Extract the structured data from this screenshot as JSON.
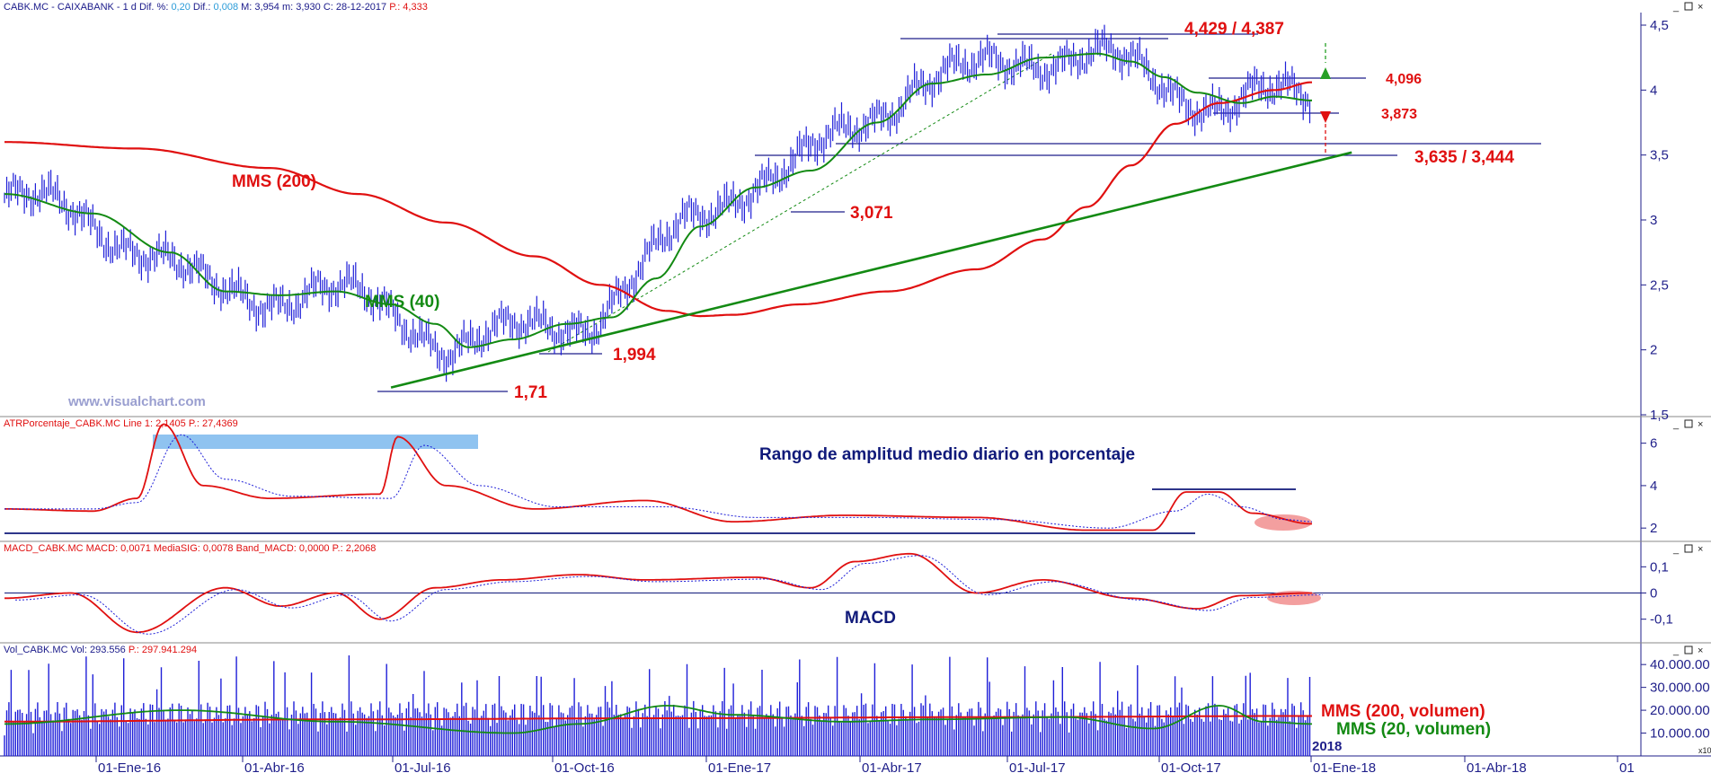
{
  "panels": {
    "price": {
      "header": [
        {
          "t": "CABK.MC - CAIXABANK - 1 d  Dif. %: ",
          "c": "#1a1a8a"
        },
        {
          "t": "0,20",
          "c": "#2a9bd8"
        },
        {
          "t": "  Dif.: ",
          "c": "#1a1a8a"
        },
        {
          "t": "0,008",
          "c": "#2a9bd8"
        },
        {
          "t": "  M: 3,954  m: 3,930  C: 28-12-2017  ",
          "c": "#1a1a8a"
        },
        {
          "t": "P.: 4,333",
          "c": "#e01010"
        }
      ],
      "yticks": [
        "4,5",
        "4",
        "3,5",
        "3",
        "2,5",
        "2",
        "1,5"
      ]
    },
    "atr": {
      "header": [
        {
          "t": "ATRPorcentaje_CABK.MC  Line 1: 2,1405  ",
          "c": "#e01010"
        },
        {
          "t": "P.: 27,4369",
          "c": "#e01010"
        }
      ],
      "yticks": [
        "6",
        "4",
        "2"
      ],
      "note": "Rango de amplitud medio diario en porcentaje"
    },
    "macd": {
      "header": [
        {
          "t": "MACD_CABK.MC  MACD: 0,0071  MediaSIG: 0,0078  Band_MACD: 0,0000  ",
          "c": "#e01010"
        },
        {
          "t": "P.: 2,2068",
          "c": "#e01010"
        }
      ],
      "yticks": [
        "0,1",
        "0",
        "-0,1"
      ],
      "note": "MACD"
    },
    "vol": {
      "header": [
        {
          "t": "Vol_CABK.MC  Vol: 293.556  ",
          "c": "#1a1a8a"
        },
        {
          "t": "P.: 297.941.294",
          "c": "#e01010"
        }
      ],
      "yticks": [
        "40.000.00",
        "30.000.00",
        "20.000.00",
        "10.000.00"
      ],
      "scale_label": "x10"
    }
  },
  "xticks": [
    "01-Ene-16",
    "01-Abr-16",
    "01-Jul-16",
    "01-Oct-16",
    "01-Ene-17",
    "01-Abr-17",
    "01-Jul-17",
    "01-Oct-17",
    "01-Ene-18",
    "01-Abr-18",
    "01"
  ],
  "year_label": "2018",
  "watermark": "www.visualchart.com",
  "annotations": {
    "mms200": "MMS (200)",
    "mms40": "MMS (40)",
    "high": "4,429 / 4,387",
    "res": "4,096",
    "sup": "3,873",
    "sup2": "3,635 / 3,444",
    "lvl3071": "3,071",
    "lvl1994": "1,994",
    "lvl171": "1,71",
    "vol200": "MMS (200, volumen)",
    "vol20": "MMS (20, volumen)"
  },
  "colors": {
    "price_bars": "#1f1fd8",
    "mms200": "#e01010",
    "mms40": "#138a13",
    "trend": "#138a13",
    "level_lines": "#1f1f8a",
    "atr_line": "#e01010",
    "atr_signal": "#1f1fd8",
    "highlight": "#8fc3f0",
    "ellipse": "#ef7f7f",
    "volume": "#1f1fd8"
  },
  "chart_data": [
    {
      "type": "line",
      "panel": "price",
      "ylim": [
        1.5,
        4.5
      ],
      "series": [
        {
          "name": "MMS (200)",
          "values": [
            [
              0,
              3.6
            ],
            [
              60,
              3.55
            ],
            [
              120,
              3.4
            ],
            [
              160,
              3.2
            ],
            [
              200,
              2.98
            ],
            [
              240,
              2.72
            ],
            [
              270,
              2.5
            ],
            [
              300,
              2.3
            ],
            [
              315,
              2.26
            ],
            [
              330,
              2.27
            ],
            [
              360,
              2.35
            ],
            [
              400,
              2.45
            ],
            [
              440,
              2.62
            ],
            [
              470,
              2.85
            ],
            [
              490,
              3.1
            ],
            [
              510,
              3.42
            ],
            [
              530,
              3.74
            ],
            [
              550,
              3.9
            ],
            [
              575,
              4.0
            ],
            [
              592,
              4.06
            ]
          ]
        },
        {
          "name": "MMS (40)",
          "values": [
            [
              0,
              3.2
            ],
            [
              40,
              3.05
            ],
            [
              75,
              2.75
            ],
            [
              100,
              2.45
            ],
            [
              125,
              2.42
            ],
            [
              150,
              2.45
            ],
            [
              175,
              2.35
            ],
            [
              195,
              2.2
            ],
            [
              210,
              2.02
            ],
            [
              230,
              2.08
            ],
            [
              255,
              2.2
            ],
            [
              275,
              2.25
            ],
            [
              295,
              2.55
            ],
            [
              315,
              2.95
            ],
            [
              340,
              3.25
            ],
            [
              365,
              3.38
            ],
            [
              395,
              3.75
            ],
            [
              420,
              4.05
            ],
            [
              445,
              4.12
            ],
            [
              470,
              4.25
            ],
            [
              495,
              4.28
            ],
            [
              510,
              4.22
            ],
            [
              525,
              4.1
            ],
            [
              540,
              3.98
            ],
            [
              560,
              3.9
            ],
            [
              575,
              3.95
            ],
            [
              592,
              3.92
            ]
          ]
        },
        {
          "name": "",
          "values": [
            [
              175,
              1.71
            ],
            [
              610,
              3.52
            ]
          ]
        }
      ]
    },
    {
      "type": "line",
      "panel": "atr",
      "ylim": [
        1.5,
        7
      ],
      "series": [
        {
          "name": "",
          "values": [
            [
              0,
              2.9
            ],
            [
              40,
              2.8
            ],
            [
              60,
              3.4
            ],
            [
              72,
              6.9
            ],
            [
              90,
              4.0
            ],
            [
              120,
              3.4
            ],
            [
              170,
              3.6
            ],
            [
              178,
              6.3
            ],
            [
              200,
              4.0
            ],
            [
              240,
              2.9
            ],
            [
              290,
              3.3
            ],
            [
              330,
              2.3
            ],
            [
              380,
              2.6
            ],
            [
              440,
              2.5
            ],
            [
              490,
              1.9
            ],
            [
              520,
              1.9
            ],
            [
              535,
              3.7
            ],
            [
              550,
              3.7
            ],
            [
              565,
              2.7
            ],
            [
              592,
              2.2
            ]
          ]
        },
        {
          "name": "",
          "values": [
            [
              0,
              2.9
            ],
            [
              40,
              2.9
            ],
            [
              60,
              3.2
            ],
            [
              80,
              6.4
            ],
            [
              100,
              4.3
            ],
            [
              130,
              3.5
            ],
            [
              175,
              3.4
            ],
            [
              190,
              5.9
            ],
            [
              215,
              4.0
            ],
            [
              250,
              3.0
            ],
            [
              300,
              3.0
            ],
            [
              340,
              2.5
            ],
            [
              390,
              2.5
            ],
            [
              450,
              2.4
            ],
            [
              500,
              2.0
            ],
            [
              530,
              2.8
            ],
            [
              545,
              3.6
            ],
            [
              560,
              3.0
            ],
            [
              580,
              2.4
            ],
            [
              592,
              2.3
            ]
          ]
        }
      ]
    },
    {
      "type": "line",
      "panel": "macd",
      "ylim": [
        -0.18,
        0.18
      ],
      "series": [
        {
          "name": "",
          "values": [
            [
              0,
              -0.02
            ],
            [
              30,
              0.0
            ],
            [
              60,
              -0.15
            ],
            [
              100,
              0.02
            ],
            [
              125,
              -0.05
            ],
            [
              150,
              0.0
            ],
            [
              170,
              -0.1
            ],
            [
              195,
              0.02
            ],
            [
              225,
              0.05
            ],
            [
              260,
              0.07
            ],
            [
              290,
              0.05
            ],
            [
              340,
              0.06
            ],
            [
              365,
              0.02
            ],
            [
              385,
              0.12
            ],
            [
              410,
              0.15
            ],
            [
              440,
              0.0
            ],
            [
              470,
              0.05
            ],
            [
              510,
              -0.02
            ],
            [
              540,
              -0.06
            ],
            [
              560,
              -0.01
            ],
            [
              592,
              0.0
            ]
          ]
        }
      ]
    },
    {
      "type": "line",
      "panel": "vol",
      "ylim": [
        0,
        44000
      ],
      "series": [
        {
          "name": "MMS (200, volumen)",
          "values": [
            [
              0,
              15000
            ],
            [
              150,
              16000
            ],
            [
              300,
              16500
            ],
            [
              450,
              17000
            ],
            [
              592,
              17500
            ]
          ]
        },
        {
          "name": "MMS (20, volumen)",
          "values": [
            [
              0,
              14000
            ],
            [
              80,
              20000
            ],
            [
              150,
              15000
            ],
            [
              230,
              10000
            ],
            [
              260,
              14000
            ],
            [
              300,
              22000
            ],
            [
              330,
              18000
            ],
            [
              380,
              15000
            ],
            [
              420,
              16000
            ],
            [
              480,
              17000
            ],
            [
              520,
              12000
            ],
            [
              550,
              22000
            ],
            [
              570,
              15000
            ],
            [
              592,
              14000
            ]
          ]
        }
      ]
    }
  ]
}
